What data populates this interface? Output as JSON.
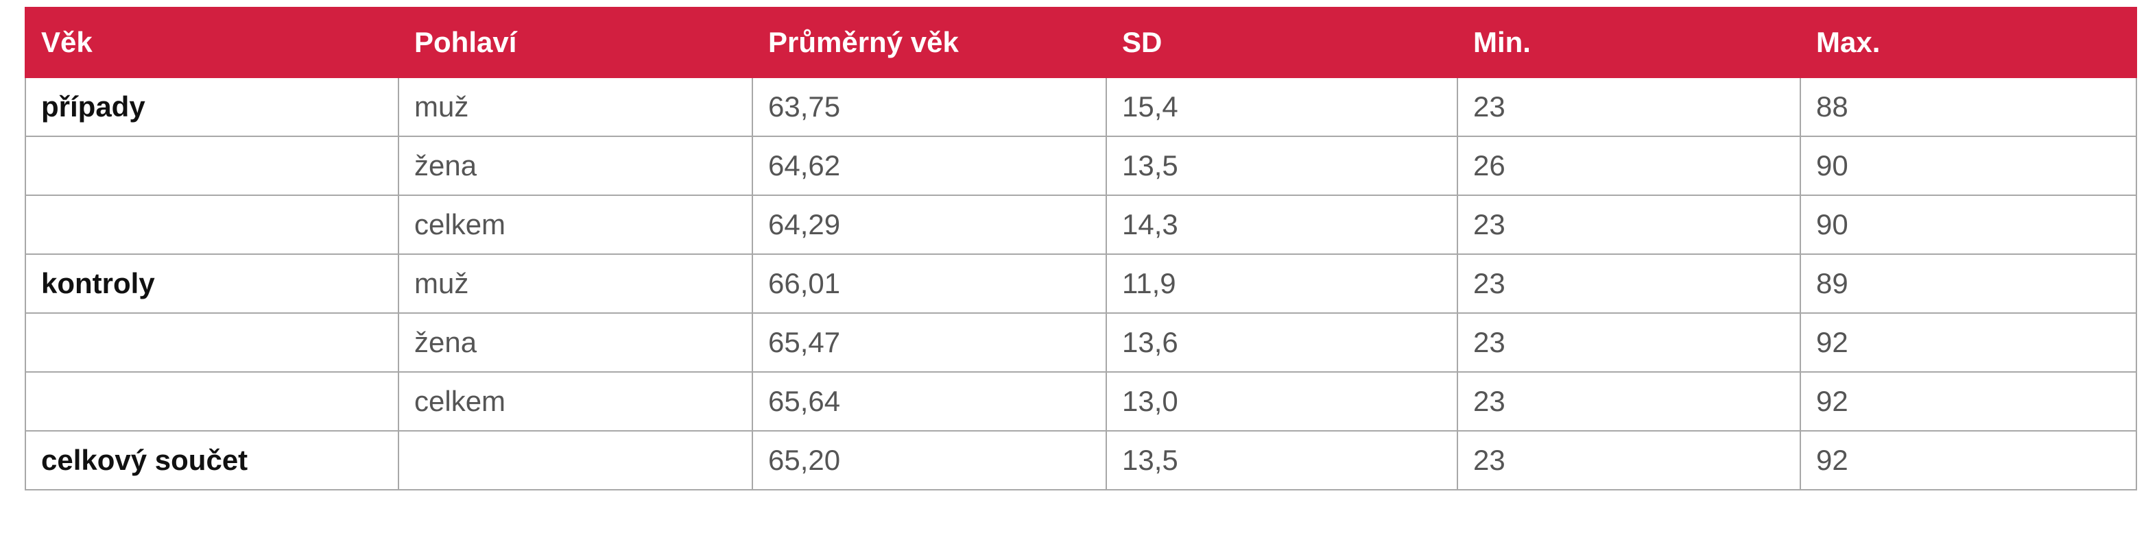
{
  "table": {
    "header": [
      "Věk",
      "Pohlaví",
      "Průměrný věk",
      "SD",
      "Min.",
      "Max."
    ],
    "rows": [
      [
        "případy",
        "muž",
        "63,75",
        "15,4",
        "23",
        "88"
      ],
      [
        null,
        "žena",
        "64,62",
        "13,5",
        "26",
        "90"
      ],
      [
        null,
        "celkem",
        "64,29",
        "14,3",
        "23",
        "90"
      ],
      [
        "kontroly",
        "muž",
        "66,01",
        "11,9",
        "23",
        "89"
      ],
      [
        null,
        "žena",
        "65,47",
        "13,6",
        "23",
        "92"
      ],
      [
        null,
        "celkem",
        "65,64",
        "13,0",
        "23",
        "92"
      ],
      [
        "celkový součet",
        null,
        "65,20",
        "13,5",
        "23",
        "92"
      ]
    ]
  }
}
